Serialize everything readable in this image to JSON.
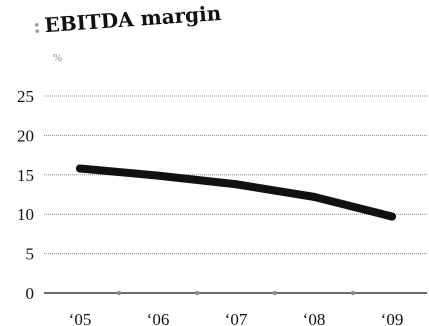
{
  "chart_data": {
    "type": "line",
    "title": "EBITDA margin",
    "unit": "%",
    "xlabel": "",
    "ylabel": "",
    "categories": [
      "‘05",
      "‘06",
      "‘07",
      "‘08",
      "‘09"
    ],
    "series": [
      {
        "values": [
          15.8,
          14.9,
          13.8,
          12.2,
          9.7
        ]
      }
    ],
    "ylim": [
      0,
      25
    ],
    "yticks": [
      0,
      5,
      10,
      15,
      20,
      25
    ],
    "grid": true,
    "colors": {
      "line": "#111111",
      "grid": "#888888",
      "axis": "#111111",
      "minor_tick": "#8a8a8a"
    }
  }
}
